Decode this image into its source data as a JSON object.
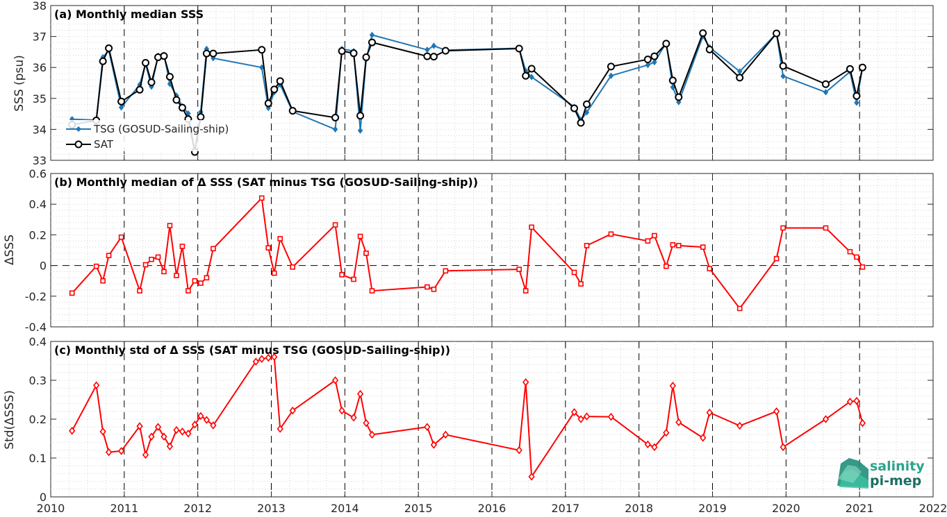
{
  "colors": {
    "tsg": "#1f77b4",
    "sat": "#000000",
    "delta": "#ff0000",
    "axis": "#262626",
    "logo": "#2aa58a"
  },
  "logo": {
    "line1": "salinity",
    "line2": "pi-mep"
  },
  "chart_data": [
    {
      "type": "line",
      "title": "(a) Monthly median SSS",
      "ylabel": "SSS (psu)",
      "xlim": [
        2010,
        2022
      ],
      "ylim": [
        33,
        38
      ],
      "xticks": [
        2010,
        2011,
        2012,
        2013,
        2014,
        2015,
        2016,
        2017,
        2018,
        2019,
        2020,
        2021,
        2022
      ],
      "yticks": [
        33,
        34,
        35,
        36,
        37,
        38
      ],
      "grid": "dotted",
      "legend_position": "left",
      "series": [
        {
          "name": "TSG (GOSUD-Sailing-ship)",
          "marker": "diamond",
          "x": [
            2010.29,
            2010.62,
            2010.71,
            2010.79,
            2010.96,
            2011.21,
            2011.29,
            2011.37,
            2011.46,
            2011.54,
            2011.62,
            2011.71,
            2011.79,
            2011.87,
            2011.96,
            2012.04,
            2012.12,
            2012.21,
            2012.87,
            2012.96,
            2013.04,
            2013.12,
            2013.29,
            2013.87,
            2013.96,
            2014.12,
            2014.21,
            2014.29,
            2014.37,
            2015.12,
            2015.21,
            2015.37,
            2016.37,
            2016.46,
            2016.54,
            2017.12,
            2017.21,
            2017.29,
            2017.62,
            2018.12,
            2018.21,
            2018.37,
            2018.46,
            2018.54,
            2018.87,
            2018.96,
            2019.37,
            2019.87,
            2019.96,
            2020.54,
            2020.87,
            2020.96,
            2021.04
          ],
          "y": [
            34.33,
            34.3,
            36.33,
            36.55,
            34.71,
            35.44,
            36.12,
            35.38,
            36.38,
            36.41,
            35.47,
            35.09,
            34.74,
            34.51,
            33.31,
            34.56,
            36.6,
            36.3,
            36.0,
            34.69,
            35.2,
            35.45,
            34.57,
            34.0,
            36.6,
            36.53,
            33.96,
            36.26,
            37.05,
            36.57,
            36.7,
            36.56,
            36.62,
            35.89,
            35.69,
            34.73,
            34.31,
            34.55,
            35.73,
            36.08,
            36.17,
            36.79,
            35.36,
            34.88,
            37.01,
            36.65,
            35.87,
            37.1,
            35.72,
            35.2,
            35.86,
            34.86,
            36.01
          ]
        },
        {
          "name": "SAT",
          "marker": "circle",
          "x": [
            2010.29,
            2010.62,
            2010.71,
            2010.79,
            2010.96,
            2011.21,
            2011.29,
            2011.37,
            2011.46,
            2011.54,
            2011.62,
            2011.71,
            2011.79,
            2011.87,
            2011.96,
            2012.04,
            2012.12,
            2012.21,
            2012.87,
            2012.96,
            2013.04,
            2013.12,
            2013.29,
            2013.87,
            2013.96,
            2014.12,
            2014.21,
            2014.29,
            2014.37,
            2015.12,
            2015.21,
            2015.37,
            2016.37,
            2016.46,
            2016.54,
            2017.12,
            2017.21,
            2017.29,
            2017.62,
            2018.12,
            2018.21,
            2018.37,
            2018.46,
            2018.54,
            2018.87,
            2018.96,
            2019.37,
            2019.87,
            2019.96,
            2020.54,
            2020.87,
            2020.96,
            2021.04
          ],
          "y": [
            34.15,
            34.29,
            36.2,
            36.62,
            34.9,
            35.28,
            36.15,
            35.52,
            36.33,
            36.37,
            35.7,
            34.95,
            34.7,
            34.33,
            33.27,
            34.4,
            36.45,
            36.45,
            36.57,
            34.84,
            35.29,
            35.56,
            34.6,
            34.38,
            36.53,
            36.46,
            34.44,
            36.33,
            36.81,
            36.36,
            36.35,
            36.54,
            36.61,
            35.73,
            35.96,
            34.68,
            34.21,
            34.81,
            36.03,
            36.26,
            36.36,
            36.77,
            35.58,
            35.04,
            37.11,
            36.58,
            35.67,
            37.1,
            36.05,
            35.46,
            35.95,
            35.08,
            36.0
          ]
        }
      ]
    },
    {
      "type": "line",
      "title": "(b) Monthly median of Δ SSS (SAT minus TSG (GOSUD-Sailing-ship))",
      "ylabel": "ΔSSS",
      "xlim": [
        2010,
        2022
      ],
      "ylim": [
        -0.4,
        0.6
      ],
      "yticks": [
        -0.4,
        -0.2,
        0,
        0.2,
        0.4,
        0.6
      ],
      "ytick_labels": [
        "-0.4",
        "-0.2",
        "0",
        "0.2",
        "0.4",
        "0.6"
      ],
      "grid": "dotted",
      "zero_line": true,
      "series": [
        {
          "marker": "square",
          "x": [
            2010.29,
            2010.62,
            2010.71,
            2010.79,
            2010.96,
            2011.21,
            2011.29,
            2011.37,
            2011.46,
            2011.54,
            2011.62,
            2011.71,
            2011.79,
            2011.87,
            2011.96,
            2012.04,
            2012.12,
            2012.21,
            2012.87,
            2012.96,
            2013.04,
            2013.12,
            2013.29,
            2013.87,
            2013.96,
            2014.12,
            2014.21,
            2014.29,
            2014.37,
            2015.12,
            2015.21,
            2015.37,
            2016.37,
            2016.46,
            2016.54,
            2017.12,
            2017.21,
            2017.29,
            2017.62,
            2018.12,
            2018.21,
            2018.37,
            2018.46,
            2018.54,
            2018.87,
            2018.96,
            2019.37,
            2019.87,
            2019.96,
            2020.54,
            2020.87,
            2020.96,
            2021.04
          ],
          "y": [
            -0.18,
            -0.005,
            -0.1,
            0.065,
            0.185,
            -0.165,
            0.005,
            0.04,
            0.055,
            -0.04,
            0.26,
            -0.065,
            0.125,
            -0.165,
            -0.1,
            -0.115,
            -0.08,
            0.11,
            0.44,
            0.115,
            -0.05,
            0.175,
            -0.01,
            0.265,
            -0.06,
            -0.09,
            0.19,
            0.08,
            -0.165,
            -0.14,
            -0.155,
            -0.035,
            -0.025,
            -0.165,
            0.25,
            -0.045,
            -0.12,
            0.13,
            0.205,
            0.16,
            0.195,
            -0.005,
            0.135,
            0.13,
            0.12,
            -0.02,
            -0.28,
            0.045,
            0.245,
            0.245,
            0.09,
            0.055,
            -0.01
          ]
        }
      ]
    },
    {
      "type": "line",
      "title": "(c) Monthly std of Δ SSS (SAT minus TSG (GOSUD-Sailing-ship))",
      "ylabel": "Std(ΔSSS)",
      "xlabel": "",
      "xlim": [
        2010,
        2022
      ],
      "ylim": [
        0,
        0.4
      ],
      "xticks": [
        2010,
        2011,
        2012,
        2013,
        2014,
        2015,
        2016,
        2017,
        2018,
        2019,
        2020,
        2021,
        2022
      ],
      "yticks": [
        0,
        0.1,
        0.2,
        0.3,
        0.4
      ],
      "ytick_labels": [
        "0",
        "0.1",
        "0.2",
        "0.3",
        "0.4"
      ],
      "grid": "dotted",
      "series": [
        {
          "marker": "diamond",
          "x": [
            2010.29,
            2010.62,
            2010.71,
            2010.79,
            2010.96,
            2011.21,
            2011.29,
            2011.37,
            2011.46,
            2011.54,
            2011.62,
            2011.71,
            2011.79,
            2011.87,
            2011.96,
            2012.04,
            2012.12,
            2012.21,
            2012.79,
            2012.87,
            2012.96,
            2013.04,
            2013.12,
            2013.29,
            2013.87,
            2013.96,
            2014.12,
            2014.21,
            2014.29,
            2014.37,
            2015.12,
            2015.21,
            2015.37,
            2016.37,
            2016.46,
            2016.54,
            2017.12,
            2017.21,
            2017.29,
            2017.62,
            2018.12,
            2018.21,
            2018.37,
            2018.46,
            2018.54,
            2018.87,
            2018.96,
            2019.37,
            2019.87,
            2019.96,
            2020.54,
            2020.87,
            2020.96,
            2021.04
          ],
          "y": [
            0.17,
            0.287,
            0.168,
            0.115,
            0.118,
            0.182,
            0.108,
            0.155,
            0.18,
            0.155,
            0.13,
            0.172,
            0.168,
            0.163,
            0.186,
            0.208,
            0.198,
            0.184,
            0.348,
            0.355,
            0.358,
            0.36,
            0.175,
            0.222,
            0.3,
            0.222,
            0.204,
            0.265,
            0.19,
            0.16,
            0.18,
            0.134,
            0.16,
            0.12,
            0.295,
            0.052,
            0.218,
            0.2,
            0.207,
            0.206,
            0.135,
            0.128,
            0.165,
            0.286,
            0.192,
            0.152,
            0.217,
            0.183,
            0.22,
            0.128,
            0.2,
            0.245,
            0.247,
            0.19
          ]
        }
      ]
    }
  ]
}
